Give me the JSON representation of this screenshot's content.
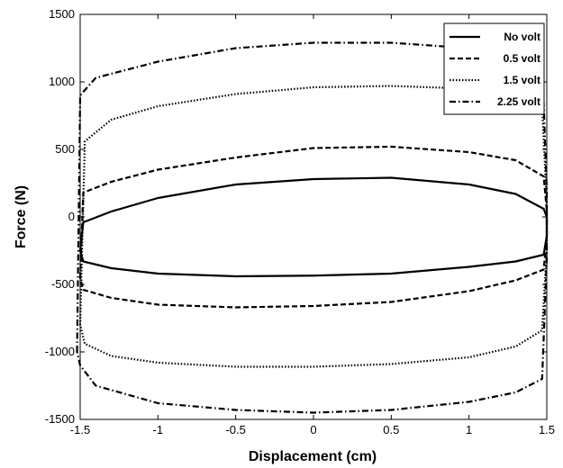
{
  "chart_data": {
    "type": "line",
    "xlabel": "Displacement (cm)",
    "ylabel": "Force (N)",
    "xlim": [
      -1.5,
      1.5
    ],
    "ylim": [
      -1500,
      1500
    ],
    "xticks": [
      -1.5,
      -1,
      -0.5,
      0,
      0.5,
      1,
      1.5
    ],
    "xtick_labels": [
      "-1.5",
      "-1",
      "-0.5",
      "0",
      "0.5",
      "1",
      "1.5"
    ],
    "yticks": [
      -1500,
      -1000,
      -500,
      0,
      500,
      1000,
      1500
    ],
    "ytick_labels": [
      "-1500",
      "-1000",
      "-500",
      "0",
      "500",
      "1000",
      "1500"
    ],
    "grid": false,
    "legend_position": "top-right",
    "series": [
      {
        "name": "No volt",
        "dash": "solid",
        "x": [
          -1.5,
          -1.48,
          -1.3,
          -1.0,
          -0.5,
          0.0,
          0.5,
          1.0,
          1.3,
          1.48,
          1.5,
          1.5,
          1.48,
          1.3,
          1.0,
          0.5,
          0.0,
          -0.5,
          -1.0,
          -1.3,
          -1.48,
          -1.5
        ],
        "y": [
          -250,
          -40,
          40,
          140,
          240,
          280,
          290,
          240,
          170,
          60,
          0,
          -140,
          -280,
          -330,
          -370,
          -420,
          -435,
          -440,
          -420,
          -380,
          -330,
          -250
        ]
      },
      {
        "name": "0.5 volt",
        "dash": "dashed",
        "x": [
          -1.5,
          -1.48,
          -1.3,
          -1.0,
          -0.5,
          0.0,
          0.5,
          1.0,
          1.3,
          1.48,
          1.5,
          1.5,
          1.48,
          1.3,
          1.0,
          0.5,
          0.0,
          -0.5,
          -1.0,
          -1.3,
          -1.48,
          -1.5
        ],
        "y": [
          -450,
          180,
          260,
          350,
          440,
          510,
          520,
          480,
          420,
          300,
          50,
          -150,
          -390,
          -470,
          -550,
          -630,
          -660,
          -670,
          -650,
          -600,
          -540,
          -450
        ]
      },
      {
        "name": "1.5 volt",
        "dash": "dotted",
        "x": [
          -1.5,
          -1.47,
          -1.3,
          -1.0,
          -0.5,
          0.0,
          0.5,
          1.0,
          1.3,
          1.47,
          1.5,
          1.5,
          1.47,
          1.3,
          1.0,
          0.5,
          0.0,
          -0.5,
          -1.0,
          -1.3,
          -1.47,
          -1.5
        ],
        "y": [
          -800,
          560,
          720,
          820,
          910,
          960,
          970,
          950,
          900,
          820,
          100,
          -250,
          -840,
          -960,
          -1040,
          -1090,
          -1110,
          -1110,
          -1080,
          -1030,
          -940,
          -800
        ]
      },
      {
        "name": "2.25 volt",
        "dash": "dashdot",
        "x": [
          -1.52,
          -1.5,
          -1.4,
          -1.0,
          -0.5,
          0.0,
          0.5,
          1.0,
          1.3,
          1.47,
          1.5,
          1.5,
          1.47,
          1.3,
          1.0,
          0.5,
          0.0,
          -0.5,
          -1.0,
          -1.4,
          -1.5,
          -1.52
        ],
        "y": [
          -1000,
          900,
          1030,
          1150,
          1250,
          1290,
          1290,
          1250,
          1210,
          1150,
          200,
          -300,
          -1200,
          -1300,
          -1370,
          -1430,
          -1450,
          -1430,
          -1380,
          -1250,
          -1100,
          -1000
        ]
      }
    ]
  }
}
